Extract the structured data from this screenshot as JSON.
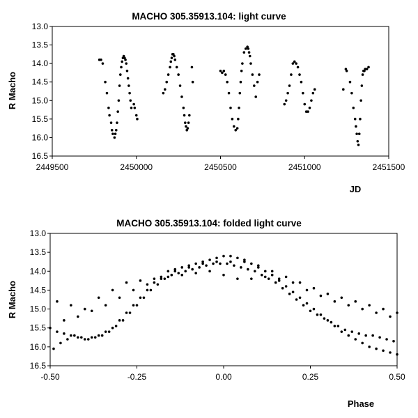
{
  "chart_data": [
    {
      "type": "scatter",
      "title": "MACHO 305.35913.104: light curve",
      "xlabel": "JD",
      "ylabel": "R Macho",
      "xlim": [
        2449500,
        2451500
      ],
      "ylim": [
        13.0,
        16.5
      ],
      "y_inverted": true,
      "x_ticks": [
        "2449500",
        "2450000",
        "2450500",
        "2451000",
        "2451500"
      ],
      "y_ticks": [
        "13.0",
        "13.5",
        "14.0",
        "14.5",
        "15.0",
        "15.5",
        "16.0",
        "16.5"
      ],
      "grid": false,
      "legend": "none",
      "marker_color": "#000000",
      "series": [
        {
          "x": [
            2449780,
            2449790,
            2449800,
            2449815,
            2449825,
            2449835,
            2449840,
            2449850,
            2449855,
            2449860,
            2449870,
            2449875,
            2449880,
            2449885,
            2449890,
            2449895,
            2449900,
            2449905,
            2449910,
            2449915,
            2449920,
            2449925,
            2449930,
            2449935,
            2449940,
            2449945,
            2449950,
            2449955,
            2449960,
            2449965,
            2449970,
            2449985,
            2449990,
            2450000,
            2450005,
            2450160,
            2450170,
            2450180,
            2450190,
            2450200,
            2450205,
            2450210,
            2450215,
            2450220,
            2450225,
            2450230,
            2450240,
            2450250,
            2450260,
            2450270,
            2450280,
            2450285,
            2450290,
            2450295,
            2450300,
            2450305,
            2450310,
            2450315,
            2450330,
            2450335,
            2450500,
            2450510,
            2450520,
            2450530,
            2450540,
            2450550,
            2450560,
            2450570,
            2450580,
            2450590,
            2450600,
            2450605,
            2450610,
            2450615,
            2450620,
            2450625,
            2450630,
            2450640,
            2450650,
            2450660,
            2450665,
            2450670,
            2450675,
            2450680,
            2450690,
            2450700,
            2450710,
            2450720,
            2450730,
            2450880,
            2450890,
            2450900,
            2450910,
            2450920,
            2450930,
            2450940,
            2450950,
            2450960,
            2450970,
            2450980,
            2450990,
            2451000,
            2451010,
            2451020,
            2451030,
            2451040,
            2451050,
            2451060,
            2451230,
            2451245,
            2451250,
            2451270,
            2451280,
            2451290,
            2451300,
            2451305,
            2451310,
            2451315,
            2451320,
            2451325,
            2451330,
            2451335,
            2451340,
            2451345,
            2451350,
            2451355,
            2451360,
            2451370,
            2451380
          ],
          "y": [
            13.9,
            13.9,
            14.0,
            14.5,
            14.8,
            15.2,
            15.4,
            15.6,
            15.8,
            15.9,
            16.0,
            15.9,
            15.8,
            15.6,
            15.3,
            15.0,
            14.6,
            14.3,
            14.1,
            13.95,
            13.85,
            13.8,
            13.85,
            13.9,
            14.0,
            14.2,
            14.4,
            14.6,
            14.8,
            15.0,
            15.2,
            15.1,
            15.2,
            15.4,
            15.5,
            14.8,
            14.7,
            14.5,
            14.3,
            14.1,
            13.95,
            13.85,
            13.75,
            13.75,
            13.8,
            13.9,
            14.1,
            14.3,
            14.6,
            14.9,
            15.2,
            15.4,
            15.6,
            15.7,
            15.8,
            15.75,
            15.6,
            15.4,
            14.1,
            14.5,
            14.2,
            14.25,
            14.2,
            14.3,
            14.5,
            14.8,
            15.2,
            15.5,
            15.7,
            15.8,
            15.75,
            15.5,
            15.2,
            14.8,
            14.5,
            14.2,
            14.0,
            13.7,
            13.6,
            13.55,
            13.6,
            13.7,
            13.8,
            14.0,
            14.3,
            14.6,
            14.9,
            14.5,
            14.3,
            15.1,
            15.0,
            14.8,
            14.6,
            14.3,
            14.0,
            13.95,
            14.0,
            14.1,
            14.3,
            14.5,
            14.8,
            15.1,
            15.3,
            15.3,
            15.2,
            15.0,
            14.8,
            14.7,
            14.7,
            14.15,
            14.2,
            14.5,
            14.8,
            15.2,
            15.5,
            15.7,
            15.9,
            16.1,
            16.2,
            15.9,
            15.5,
            15.0,
            14.6,
            14.3,
            14.2,
            14.2,
            14.15,
            14.15,
            14.1
          ]
        }
      ]
    },
    {
      "type": "scatter",
      "title": "MACHO 305.35913.104: folded light curve",
      "xlabel": "Phase",
      "ylabel": "R Macho",
      "xlim": [
        -0.5,
        0.5
      ],
      "ylim": [
        13.0,
        16.5
      ],
      "y_inverted": true,
      "x_ticks": [
        "-0.50",
        "-0.25",
        "0.00",
        "0.25",
        "0.50"
      ],
      "y_ticks": [
        "13.0",
        "13.5",
        "14.0",
        "14.5",
        "15.0",
        "15.5",
        "16.0",
        "16.5"
      ],
      "grid": false,
      "legend": "none",
      "marker_color": "#000000",
      "series": [
        {
          "x": [
            -0.5,
            -0.48,
            -0.46,
            -0.44,
            -0.42,
            -0.4,
            -0.38,
            -0.36,
            -0.34,
            -0.32,
            -0.3,
            -0.28,
            -0.26,
            -0.24,
            -0.22,
            -0.2,
            -0.18,
            -0.16,
            -0.14,
            -0.12,
            -0.1,
            -0.08,
            -0.06,
            -0.04,
            -0.02,
            0.0,
            0.02,
            0.04,
            0.06,
            0.08,
            0.1,
            0.12,
            0.14,
            0.16,
            0.18,
            0.2,
            0.22,
            0.24,
            0.26,
            0.28,
            0.3,
            0.32,
            0.34,
            0.36,
            0.38,
            0.4,
            0.42,
            0.44,
            0.46,
            0.48,
            0.5,
            -0.49,
            -0.47,
            -0.45,
            -0.43,
            -0.41,
            -0.39,
            -0.37,
            -0.35,
            -0.33,
            -0.31,
            -0.29,
            -0.27,
            -0.25,
            -0.23,
            -0.21,
            -0.19,
            -0.17,
            -0.15,
            -0.13,
            -0.11,
            -0.09,
            -0.07,
            -0.05,
            -0.03,
            -0.01,
            0.01,
            0.03,
            0.05,
            0.07,
            0.09,
            0.11,
            0.13,
            0.15,
            0.17,
            0.19,
            0.21,
            0.23,
            0.25,
            0.27,
            0.29,
            0.31,
            0.33,
            0.35,
            0.37,
            0.39,
            0.41,
            0.43,
            0.45,
            0.47,
            0.49,
            -0.48,
            -0.44,
            -0.4,
            -0.36,
            -0.32,
            -0.28,
            -0.24,
            -0.2,
            -0.16,
            -0.12,
            -0.08,
            -0.04,
            0.0,
            0.04,
            0.08,
            0.12,
            0.16,
            0.2,
            0.24,
            0.28,
            0.32,
            0.36,
            0.4,
            0.44,
            0.48,
            -0.46,
            -0.42,
            -0.38,
            -0.34,
            -0.3,
            -0.26,
            -0.22,
            -0.18,
            -0.14,
            -0.1,
            -0.06,
            -0.02,
            0.02,
            0.06,
            0.1,
            0.14,
            0.18,
            0.22,
            0.26,
            0.3,
            0.34,
            0.38,
            0.42,
            0.46,
            0.5
          ],
          "y": [
            15.5,
            15.6,
            15.65,
            15.7,
            15.75,
            15.8,
            15.75,
            15.7,
            15.6,
            15.5,
            15.3,
            15.1,
            14.9,
            14.7,
            14.5,
            14.3,
            14.15,
            14.0,
            13.95,
            13.9,
            13.85,
            13.8,
            13.75,
            13.7,
            13.65,
            13.6,
            13.6,
            13.65,
            13.7,
            13.8,
            13.9,
            14.0,
            14.1,
            14.25,
            14.4,
            14.55,
            14.7,
            14.85,
            15.0,
            15.15,
            15.3,
            15.45,
            15.6,
            15.7,
            15.8,
            15.9,
            16.0,
            16.05,
            16.1,
            16.15,
            16.2,
            16.05,
            15.9,
            15.8,
            15.7,
            15.75,
            15.8,
            15.75,
            15.7,
            15.6,
            15.45,
            15.3,
            15.1,
            14.9,
            14.7,
            14.5,
            14.35,
            14.2,
            14.1,
            14.05,
            14.0,
            13.95,
            13.9,
            13.85,
            13.8,
            13.8,
            13.8,
            13.85,
            13.9,
            13.95,
            14.0,
            14.1,
            14.2,
            14.3,
            14.45,
            14.6,
            14.75,
            14.9,
            15.05,
            15.15,
            15.25,
            15.35,
            15.45,
            15.55,
            15.6,
            15.65,
            15.7,
            15.7,
            15.75,
            15.8,
            15.85,
            14.8,
            14.9,
            15.0,
            14.7,
            14.5,
            14.3,
            14.25,
            14.2,
            14.15,
            14.1,
            14.05,
            14.0,
            14.1,
            14.2,
            14.2,
            14.15,
            14.2,
            14.3,
            14.5,
            14.65,
            14.8,
            14.9,
            15.0,
            15.1,
            15.2,
            15.3,
            15.2,
            15.05,
            14.9,
            14.7,
            14.5,
            14.35,
            14.2,
            14.0,
            13.9,
            13.8,
            13.75,
            13.75,
            13.75,
            13.85,
            14.0,
            14.15,
            14.3,
            14.45,
            14.6,
            14.7,
            14.8,
            14.9,
            15.0,
            15.1
          ]
        }
      ]
    }
  ]
}
